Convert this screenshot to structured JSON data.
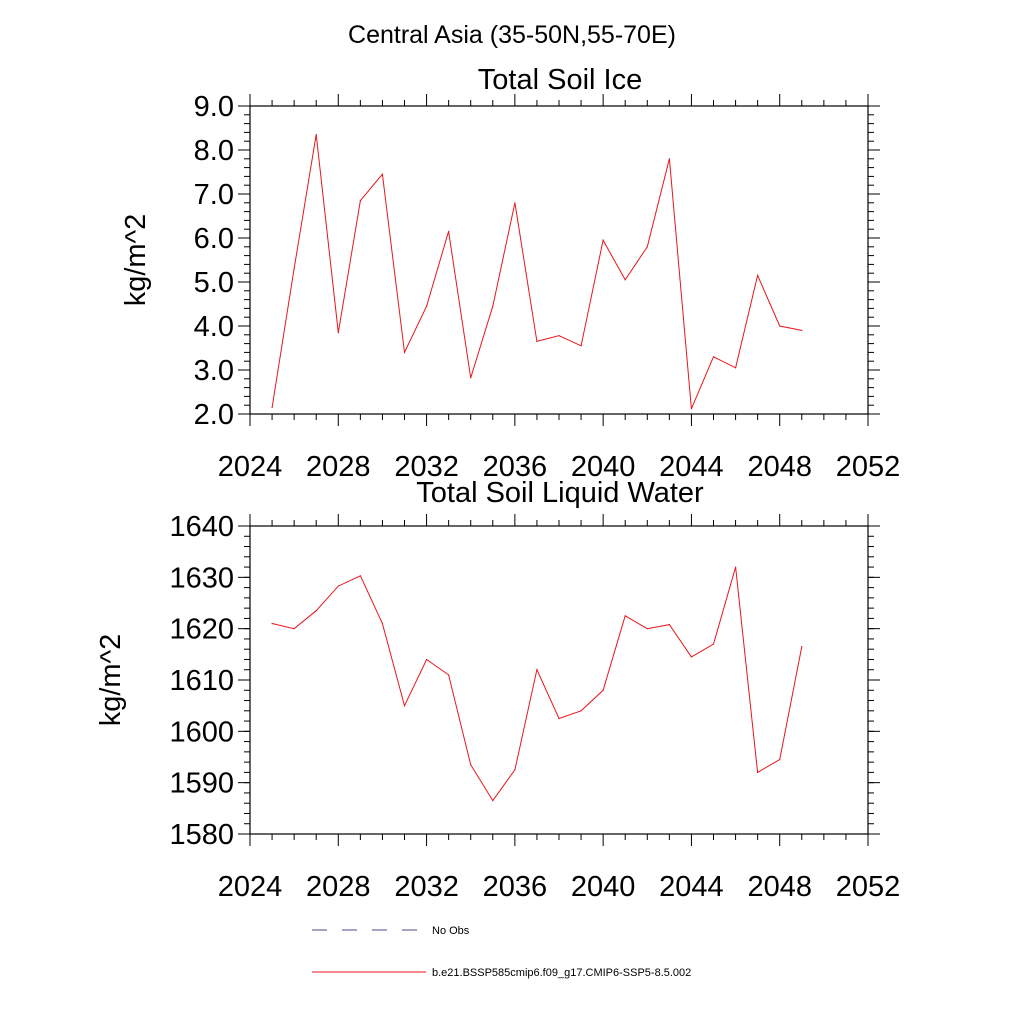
{
  "figure_title": "Central Asia (35-50N,55-70E)",
  "colors": {
    "model": "#e8161b",
    "obs": "#4a4a8a",
    "frame": "#000000"
  },
  "chart_data": [
    {
      "type": "line",
      "title": "Total Soil Ice",
      "xlabel": "",
      "ylabel": "kg/m^2",
      "xlim": [
        2024,
        2052
      ],
      "ylim": [
        2.0,
        9.0
      ],
      "x_ticks": [
        2024,
        2028,
        2032,
        2036,
        2040,
        2044,
        2048,
        2052
      ],
      "y_ticks": [
        "2.0",
        "3.0",
        "4.0",
        "5.0",
        "6.0",
        "7.0",
        "8.0",
        "9.0"
      ],
      "y_tick_values": [
        2,
        3,
        4,
        5,
        6,
        7,
        8,
        9
      ],
      "grid": false,
      "series": [
        {
          "name": "b.e21.BSSP585cmip6.f09_g17.CMIP6-SSP5-8.5.002",
          "x": [
            2025,
            2026,
            2027,
            2028,
            2029,
            2030,
            2031,
            2032,
            2033,
            2034,
            2035,
            2036,
            2037,
            2038,
            2039,
            2040,
            2041,
            2042,
            2043,
            2044,
            2045,
            2046,
            2047,
            2048,
            2049
          ],
          "values": [
            2.15,
            5.3,
            8.35,
            3.85,
            6.85,
            7.45,
            3.4,
            4.45,
            6.15,
            2.82,
            4.45,
            6.8,
            3.65,
            3.78,
            3.55,
            5.95,
            5.05,
            5.8,
            7.8,
            2.12,
            3.3,
            3.05,
            5.15,
            4.0,
            3.9
          ]
        }
      ]
    },
    {
      "type": "line",
      "title": "Total Soil Liquid Water",
      "xlabel": "",
      "ylabel": "kg/m^2",
      "xlim": [
        2024,
        2052
      ],
      "ylim": [
        1580,
        1640
      ],
      "x_ticks": [
        2024,
        2028,
        2032,
        2036,
        2040,
        2044,
        2048,
        2052
      ],
      "y_ticks": [
        "1580",
        "1590",
        "1600",
        "1610",
        "1620",
        "1630",
        "1640"
      ],
      "y_tick_values": [
        1580,
        1590,
        1600,
        1610,
        1620,
        1630,
        1640
      ],
      "grid": false,
      "series": [
        {
          "name": "b.e21.BSSP585cmip6.f09_g17.CMIP6-SSP5-8.5.002",
          "x": [
            2025,
            2026,
            2027,
            2028,
            2029,
            2030,
            2031,
            2032,
            2033,
            2034,
            2035,
            2036,
            2037,
            2038,
            2039,
            2040,
            2041,
            2042,
            2043,
            2044,
            2045,
            2046,
            2047,
            2048,
            2049
          ],
          "values": [
            1621,
            1620,
            1623.5,
            1628.3,
            1630.3,
            1621,
            1605,
            1614,
            1611,
            1593.5,
            1586.5,
            1592.5,
            1612,
            1602.5,
            1604,
            1608,
            1622.5,
            1620,
            1620.8,
            1614.5,
            1617,
            1632,
            1592,
            1594.5,
            1616.5
          ]
        }
      ]
    }
  ],
  "legend": {
    "items": [
      {
        "label": "No Obs",
        "style": "dashed",
        "color_key": "obs"
      },
      {
        "label": "b.e21.BSSP585cmip6.f09_g17.CMIP6-SSP5-8.5.002",
        "style": "solid",
        "color_key": "model"
      }
    ]
  }
}
